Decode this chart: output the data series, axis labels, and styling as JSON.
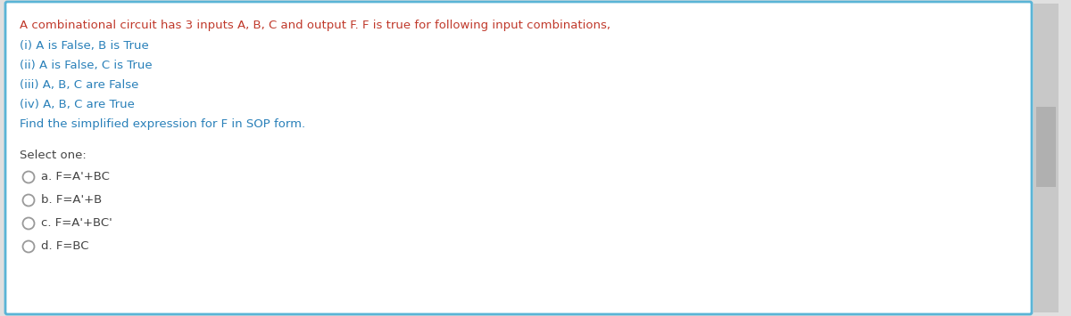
{
  "background_color": "#ffffff",
  "border_color": "#5ab4d6",
  "outer_bg_color": "#e0e0e0",
  "title_text": "A combinational circuit has 3 inputs A, B, C and output F. F is true for following input combinations,",
  "title_color": "#c0392b",
  "body_lines": [
    "(i) A is False, B is True",
    "(ii) A is False, C is True",
    "(iii) A, B, C are False",
    "(iv) A, B, C are True",
    "Find the simplified expression for F in SOP form."
  ],
  "body_color": "#2980b9",
  "select_label": "Select one:",
  "select_color": "#444444",
  "options": [
    "a. F=A'+BC",
    "b. F=A'+B",
    "c. F=A'+BC'",
    "d. F=BC"
  ],
  "option_color": "#444444",
  "circle_color": "#999999",
  "scrollbar_track": "#c8c8c8",
  "scrollbar_handle": "#b0b0b0",
  "border_linewidth": 2.0,
  "fig_width": 12.0,
  "fig_height": 3.55,
  "dpi": 100
}
